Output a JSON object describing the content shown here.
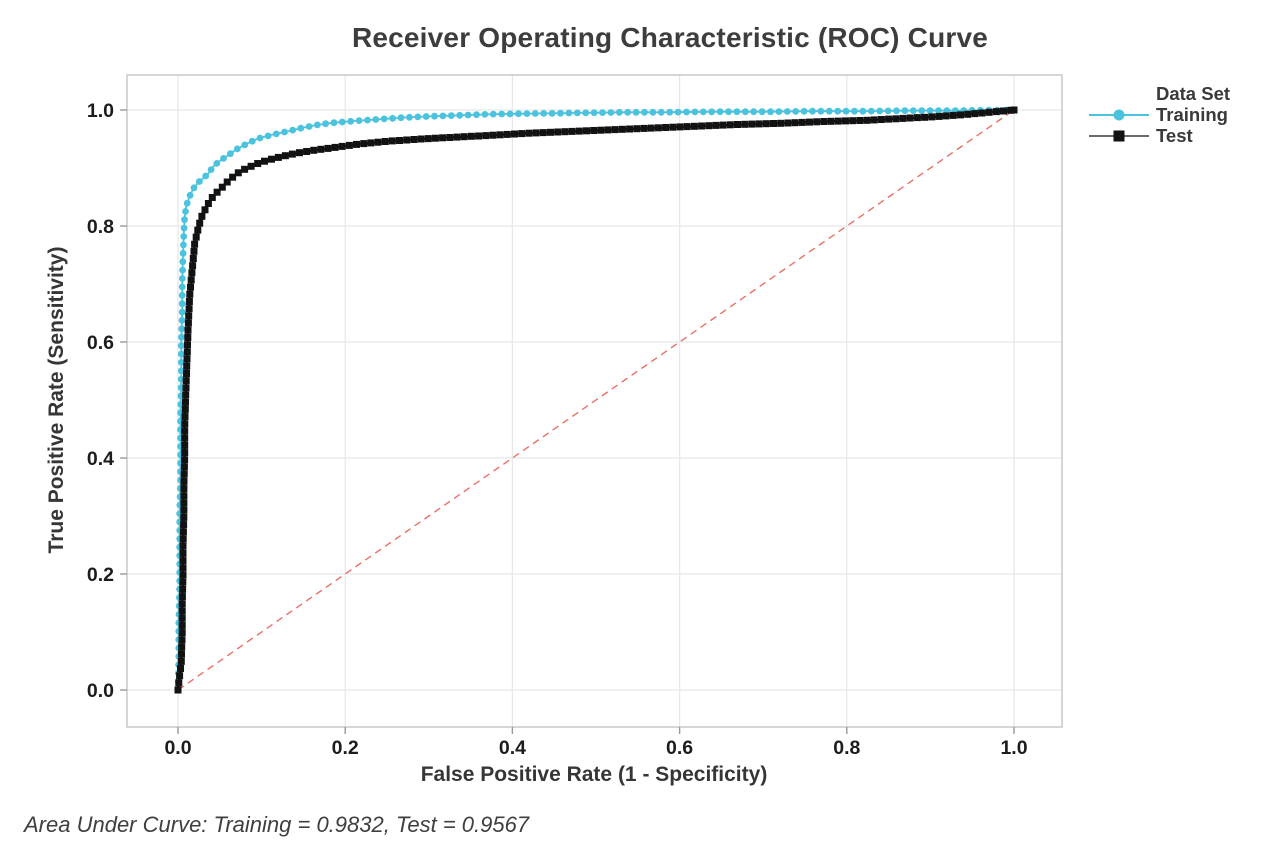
{
  "chart_data": {
    "type": "line",
    "title": "Receiver Operating Characteristic (ROC) Curve",
    "xlabel": "False Positive Rate (1 - Specificity)",
    "ylabel": "True Positive Rate (Sensitivity)",
    "xlim": [
      0,
      1
    ],
    "ylim": [
      0,
      1
    ],
    "grid": true,
    "legend_position": "right",
    "x_tick_values": [
      0.0,
      0.2,
      0.4,
      0.6,
      0.8,
      1.0
    ],
    "x_tick_labels": [
      "0.0",
      "0.2",
      "0.4",
      "0.6",
      "0.8",
      "1.0"
    ],
    "y_tick_values": [
      0.0,
      0.2,
      0.4,
      0.6,
      0.8,
      1.0
    ],
    "y_tick_labels": [
      "0.0",
      "0.2",
      "0.4",
      "0.6",
      "0.8",
      "1.0"
    ],
    "series": [
      {
        "name": "Training",
        "marker": "circle",
        "color": "#4BC3DF",
        "auc": 0.9832,
        "points": [
          [
            0.0,
            0.0
          ],
          [
            0.001,
            0.06
          ],
          [
            0.001,
            0.12
          ],
          [
            0.002,
            0.18
          ],
          [
            0.002,
            0.24
          ],
          [
            0.002,
            0.3
          ],
          [
            0.003,
            0.36
          ],
          [
            0.003,
            0.42
          ],
          [
            0.003,
            0.48
          ],
          [
            0.004,
            0.54
          ],
          [
            0.004,
            0.6
          ],
          [
            0.005,
            0.65
          ],
          [
            0.005,
            0.7
          ],
          [
            0.006,
            0.75
          ],
          [
            0.007,
            0.79
          ],
          [
            0.008,
            0.815
          ],
          [
            0.01,
            0.835
          ],
          [
            0.013,
            0.848
          ],
          [
            0.016,
            0.858
          ],
          [
            0.02,
            0.868
          ],
          [
            0.025,
            0.876
          ],
          [
            0.03,
            0.882
          ],
          [
            0.036,
            0.89
          ],
          [
            0.042,
            0.902
          ],
          [
            0.048,
            0.91
          ],
          [
            0.055,
            0.917
          ],
          [
            0.062,
            0.924
          ],
          [
            0.072,
            0.934
          ],
          [
            0.084,
            0.943
          ],
          [
            0.096,
            0.951
          ],
          [
            0.112,
            0.957
          ],
          [
            0.13,
            0.963
          ],
          [
            0.148,
            0.969
          ],
          [
            0.165,
            0.974
          ],
          [
            0.185,
            0.978
          ],
          [
            0.21,
            0.981
          ],
          [
            0.24,
            0.984
          ],
          [
            0.27,
            0.987
          ],
          [
            0.3,
            0.989
          ],
          [
            0.34,
            0.991
          ],
          [
            0.38,
            0.993
          ],
          [
            0.43,
            0.994
          ],
          [
            0.48,
            0.995
          ],
          [
            0.53,
            0.996
          ],
          [
            0.58,
            0.996
          ],
          [
            0.64,
            0.997
          ],
          [
            0.7,
            0.997
          ],
          [
            0.76,
            0.998
          ],
          [
            0.82,
            0.998
          ],
          [
            0.88,
            0.999
          ],
          [
            0.93,
            0.999
          ],
          [
            1.0,
            1.0
          ]
        ]
      },
      {
        "name": "Test",
        "marker": "square",
        "color": "#121212",
        "auc": 0.9567,
        "points": [
          [
            0.0,
            0.0
          ],
          [
            0.004,
            0.05
          ],
          [
            0.005,
            0.1
          ],
          [
            0.005,
            0.15
          ],
          [
            0.006,
            0.2
          ],
          [
            0.006,
            0.25
          ],
          [
            0.007,
            0.3
          ],
          [
            0.007,
            0.35
          ],
          [
            0.008,
            0.4
          ],
          [
            0.008,
            0.45
          ],
          [
            0.009,
            0.5
          ],
          [
            0.01,
            0.54
          ],
          [
            0.011,
            0.58
          ],
          [
            0.012,
            0.62
          ],
          [
            0.013,
            0.65
          ],
          [
            0.014,
            0.68
          ],
          [
            0.016,
            0.71
          ],
          [
            0.018,
            0.74
          ],
          [
            0.02,
            0.77
          ],
          [
            0.024,
            0.795
          ],
          [
            0.028,
            0.815
          ],
          [
            0.033,
            0.83
          ],
          [
            0.038,
            0.843
          ],
          [
            0.044,
            0.855
          ],
          [
            0.05,
            0.862
          ],
          [
            0.056,
            0.872
          ],
          [
            0.062,
            0.88
          ],
          [
            0.07,
            0.89
          ],
          [
            0.08,
            0.898
          ],
          [
            0.092,
            0.906
          ],
          [
            0.106,
            0.913
          ],
          [
            0.122,
            0.919
          ],
          [
            0.14,
            0.925
          ],
          [
            0.16,
            0.93
          ],
          [
            0.185,
            0.935
          ],
          [
            0.215,
            0.941
          ],
          [
            0.25,
            0.946
          ],
          [
            0.29,
            0.95
          ],
          [
            0.33,
            0.953
          ],
          [
            0.37,
            0.956
          ],
          [
            0.42,
            0.96
          ],
          [
            0.47,
            0.963
          ],
          [
            0.52,
            0.966
          ],
          [
            0.57,
            0.969
          ],
          [
            0.62,
            0.972
          ],
          [
            0.67,
            0.975
          ],
          [
            0.72,
            0.977
          ],
          [
            0.77,
            0.98
          ],
          [
            0.82,
            0.982
          ],
          [
            0.86,
            0.985
          ],
          [
            0.9,
            0.988
          ],
          [
            0.94,
            0.992
          ],
          [
            0.97,
            0.996
          ],
          [
            1.0,
            1.0
          ]
        ]
      }
    ],
    "reference_line": {
      "from": [
        0,
        0
      ],
      "to": [
        1,
        1
      ],
      "color": "#E97066",
      "style": "dashed"
    },
    "auc": {
      "Training": 0.9832,
      "Test": 0.9567
    }
  },
  "legend": {
    "title": "Data Set"
  },
  "footer": {
    "text": "Area Under Curve: Training = 0.9832, Test = 0.9567"
  },
  "colors": {
    "training": "#4BC3DF",
    "test": "#121212",
    "reference": "#E97066",
    "gridline": "#e7e7e7",
    "frame": "#c8c8c8"
  }
}
